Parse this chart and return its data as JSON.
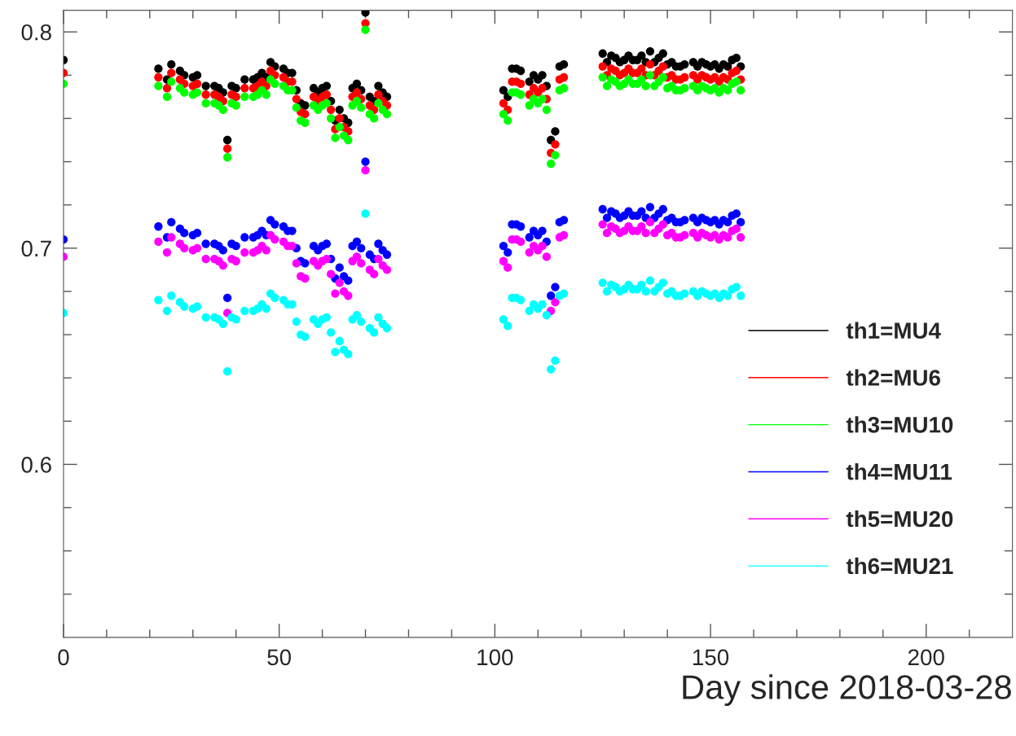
{
  "chart_data": {
    "type": "scatter",
    "xlabel": "Day since 2018-03-28",
    "x": [
      0,
      22,
      24,
      25,
      27,
      28,
      30,
      31,
      33,
      35,
      36,
      37,
      38,
      39,
      40,
      42,
      44,
      45,
      46,
      47,
      48,
      49,
      51,
      52,
      53,
      54,
      55,
      56,
      58,
      59,
      60,
      61,
      62,
      63,
      64,
      65,
      66,
      67,
      68,
      69,
      70,
      71,
      72,
      73,
      74,
      75,
      102,
      103,
      104,
      105,
      106,
      108,
      109,
      110,
      111,
      112,
      113,
      114,
      115,
      116,
      125,
      126,
      127,
      128,
      129,
      130,
      131,
      132,
      133,
      134,
      135,
      136,
      137,
      138,
      139,
      140,
      141,
      142,
      143,
      144,
      146,
      147,
      148,
      149,
      150,
      151,
      152,
      153,
      154,
      155,
      156,
      157
    ],
    "series": [
      {
        "name": "th1=MU4",
        "color": "#000000",
        "values": [
          0.787,
          0.783,
          0.778,
          0.785,
          0.782,
          0.78,
          0.779,
          0.78,
          0.775,
          0.775,
          0.774,
          0.772,
          0.75,
          0.775,
          0.774,
          0.778,
          0.778,
          0.779,
          0.781,
          0.779,
          0.786,
          0.784,
          0.783,
          0.781,
          0.781,
          0.773,
          0.767,
          0.766,
          0.774,
          0.772,
          0.774,
          0.775,
          0.768,
          0.759,
          0.764,
          0.76,
          0.758,
          0.774,
          0.776,
          0.773,
          0.809,
          0.77,
          0.768,
          0.775,
          0.772,
          0.77,
          0.773,
          0.77,
          0.783,
          0.783,
          0.782,
          0.777,
          0.78,
          0.778,
          0.78,
          0.775,
          0.75,
          0.754,
          0.784,
          0.785,
          0.79,
          0.786,
          0.789,
          0.788,
          0.786,
          0.787,
          0.789,
          0.787,
          0.787,
          0.789,
          0.786,
          0.791,
          0.786,
          0.788,
          0.79,
          0.785,
          0.786,
          0.784,
          0.784,
          0.785,
          0.786,
          0.784,
          0.786,
          0.785,
          0.784,
          0.785,
          0.783,
          0.785,
          0.784,
          0.787,
          0.788,
          0.784
        ]
      },
      {
        "name": "th2=MU6",
        "color": "#ff0000",
        "values": [
          0.781,
          0.779,
          0.774,
          0.781,
          0.778,
          0.776,
          0.775,
          0.776,
          0.771,
          0.771,
          0.77,
          0.768,
          0.746,
          0.771,
          0.77,
          0.774,
          0.774,
          0.775,
          0.777,
          0.775,
          0.782,
          0.78,
          0.779,
          0.777,
          0.777,
          0.769,
          0.763,
          0.762,
          0.77,
          0.768,
          0.77,
          0.771,
          0.764,
          0.755,
          0.76,
          0.756,
          0.754,
          0.77,
          0.772,
          0.769,
          0.804,
          0.766,
          0.764,
          0.771,
          0.768,
          0.766,
          0.767,
          0.764,
          0.777,
          0.777,
          0.776,
          0.771,
          0.774,
          0.772,
          0.774,
          0.769,
          0.744,
          0.748,
          0.778,
          0.779,
          0.784,
          0.78,
          0.783,
          0.782,
          0.78,
          0.781,
          0.783,
          0.781,
          0.781,
          0.783,
          0.78,
          0.785,
          0.78,
          0.782,
          0.784,
          0.779,
          0.78,
          0.778,
          0.778,
          0.779,
          0.78,
          0.778,
          0.78,
          0.779,
          0.778,
          0.779,
          0.777,
          0.779,
          0.778,
          0.781,
          0.782,
          0.778
        ]
      },
      {
        "name": "th3=MU10",
        "color": "#00ff00",
        "values": [
          0.776,
          0.775,
          0.77,
          0.777,
          0.774,
          0.772,
          0.771,
          0.772,
          0.767,
          0.767,
          0.766,
          0.764,
          0.742,
          0.767,
          0.766,
          0.77,
          0.77,
          0.771,
          0.773,
          0.771,
          0.778,
          0.776,
          0.775,
          0.773,
          0.773,
          0.765,
          0.759,
          0.758,
          0.766,
          0.764,
          0.766,
          0.767,
          0.76,
          0.751,
          0.756,
          0.752,
          0.75,
          0.766,
          0.768,
          0.765,
          0.801,
          0.762,
          0.76,
          0.767,
          0.764,
          0.762,
          0.762,
          0.759,
          0.772,
          0.772,
          0.771,
          0.766,
          0.769,
          0.767,
          0.769,
          0.764,
          0.739,
          0.743,
          0.773,
          0.774,
          0.779,
          0.775,
          0.778,
          0.777,
          0.775,
          0.776,
          0.778,
          0.776,
          0.776,
          0.778,
          0.775,
          0.78,
          0.775,
          0.777,
          0.779,
          0.774,
          0.775,
          0.773,
          0.773,
          0.774,
          0.775,
          0.773,
          0.775,
          0.774,
          0.773,
          0.774,
          0.772,
          0.774,
          0.773,
          0.776,
          0.777,
          0.773
        ]
      },
      {
        "name": "th4=MU11",
        "color": "#0000ff",
        "values": [
          0.704,
          0.71,
          0.705,
          0.712,
          0.709,
          0.707,
          0.706,
          0.707,
          0.702,
          0.702,
          0.701,
          0.699,
          0.677,
          0.702,
          0.701,
          0.705,
          0.705,
          0.706,
          0.708,
          0.706,
          0.713,
          0.711,
          0.71,
          0.708,
          0.708,
          0.7,
          0.694,
          0.693,
          0.701,
          0.699,
          0.701,
          0.702,
          0.695,
          0.686,
          0.691,
          0.687,
          0.685,
          0.701,
          0.703,
          0.7,
          0.74,
          0.697,
          0.695,
          0.702,
          0.699,
          0.697,
          0.701,
          0.698,
          0.711,
          0.711,
          0.71,
          0.705,
          0.708,
          0.706,
          0.708,
          0.703,
          0.678,
          0.682,
          0.712,
          0.713,
          0.718,
          0.714,
          0.717,
          0.716,
          0.714,
          0.715,
          0.717,
          0.715,
          0.715,
          0.717,
          0.714,
          0.719,
          0.714,
          0.716,
          0.718,
          0.713,
          0.714,
          0.712,
          0.712,
          0.713,
          0.714,
          0.712,
          0.714,
          0.713,
          0.712,
          0.713,
          0.711,
          0.713,
          0.712,
          0.715,
          0.716,
          0.712
        ]
      },
      {
        "name": "th5=MU20",
        "color": "#ff00ff",
        "values": [
          0.696,
          0.703,
          0.698,
          0.705,
          0.702,
          0.7,
          0.699,
          0.7,
          0.695,
          0.695,
          0.694,
          0.692,
          0.67,
          0.695,
          0.694,
          0.698,
          0.698,
          0.699,
          0.701,
          0.699,
          0.706,
          0.704,
          0.703,
          0.701,
          0.701,
          0.693,
          0.687,
          0.686,
          0.694,
          0.692,
          0.694,
          0.695,
          0.688,
          0.679,
          0.684,
          0.68,
          0.678,
          0.694,
          0.696,
          0.693,
          0.736,
          0.69,
          0.688,
          0.695,
          0.692,
          0.69,
          0.694,
          0.691,
          0.704,
          0.704,
          0.703,
          0.698,
          0.701,
          0.699,
          0.701,
          0.696,
          0.671,
          0.675,
          0.705,
          0.706,
          0.711,
          0.707,
          0.71,
          0.709,
          0.707,
          0.708,
          0.71,
          0.708,
          0.708,
          0.71,
          0.707,
          0.712,
          0.707,
          0.709,
          0.711,
          0.706,
          0.707,
          0.705,
          0.705,
          0.706,
          0.707,
          0.705,
          0.707,
          0.706,
          0.705,
          0.706,
          0.704,
          0.706,
          0.705,
          0.708,
          0.709,
          0.705
        ]
      },
      {
        "name": "th6=MU21",
        "color": "#00ffff",
        "values": [
          0.67,
          0.676,
          0.671,
          0.678,
          0.675,
          0.673,
          0.672,
          0.673,
          0.668,
          0.668,
          0.667,
          0.665,
          0.643,
          0.668,
          0.667,
          0.671,
          0.671,
          0.672,
          0.674,
          0.672,
          0.679,
          0.677,
          0.676,
          0.674,
          0.674,
          0.666,
          0.66,
          0.659,
          0.667,
          0.665,
          0.667,
          0.668,
          0.661,
          0.652,
          0.657,
          0.653,
          0.651,
          0.667,
          0.669,
          0.666,
          0.716,
          0.663,
          0.661,
          0.668,
          0.665,
          0.663,
          0.667,
          0.664,
          0.677,
          0.677,
          0.676,
          0.671,
          0.674,
          0.672,
          0.674,
          0.669,
          0.644,
          0.648,
          0.678,
          0.679,
          0.684,
          0.68,
          0.683,
          0.682,
          0.68,
          0.681,
          0.683,
          0.681,
          0.681,
          0.683,
          0.68,
          0.685,
          0.68,
          0.682,
          0.684,
          0.679,
          0.68,
          0.678,
          0.678,
          0.679,
          0.68,
          0.678,
          0.68,
          0.679,
          0.678,
          0.679,
          0.677,
          0.679,
          0.678,
          0.681,
          0.682,
          0.678
        ]
      }
    ],
    "xlim": [
      0,
      220
    ],
    "xticks": [
      0,
      {
        "value": 10,
        "label": null
      },
      {
        "value": 20,
        "label": null
      },
      {
        "value": 30,
        "label": null
      },
      {
        "value": 40,
        "label": null
      },
      50,
      {
        "value": 60,
        "label": null
      },
      {
        "value": 70,
        "label": null
      },
      {
        "value": 80,
        "label": null
      },
      {
        "value": 90,
        "label": null
      },
      100,
      {
        "value": 110,
        "label": null
      },
      {
        "value": 120,
        "label": null
      },
      {
        "value": 130,
        "label": null
      },
      {
        "value": 140,
        "label": null
      },
      150,
      {
        "value": 160,
        "label": null
      },
      {
        "value": 170,
        "label": null
      },
      {
        "value": 180,
        "label": null
      },
      {
        "value": 190,
        "label": null
      },
      200,
      {
        "value": 210,
        "label": null
      }
    ],
    "ylim": [
      0.52,
      0.81
    ],
    "yticks": [
      {
        "value": 0.54,
        "label": null
      },
      {
        "value": 0.56,
        "label": null
      },
      {
        "value": 0.58,
        "label": null
      },
      0.6,
      {
        "value": 0.62,
        "label": null
      },
      {
        "value": 0.64,
        "label": null
      },
      {
        "value": 0.66,
        "label": null
      },
      {
        "value": 0.68,
        "label": null
      },
      0.7,
      {
        "value": 0.72,
        "label": null
      },
      {
        "value": 0.74,
        "label": null
      },
      {
        "value": 0.76,
        "label": null
      },
      {
        "value": 0.78,
        "label": null
      },
      0.8
    ],
    "marker": "circle",
    "grid": false,
    "legend": "bottom right"
  }
}
